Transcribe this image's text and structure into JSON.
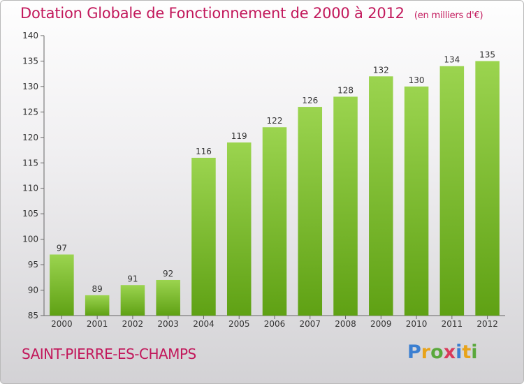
{
  "header": {
    "title": "Dotation Globale de Fonctionnement de 2000 à 2012",
    "subtitle": "(en milliers d'€)"
  },
  "footer": {
    "commune": "SAINT-PIERRE-ES-CHAMPS",
    "logo": "Proxiti"
  },
  "colors": {
    "bar_top": "#9bd44f",
    "bar_bottom": "#5fa114",
    "accent": "#c2185b"
  },
  "chart_data": {
    "type": "bar",
    "title": "Dotation Globale de Fonctionnement de 2000 à 2012",
    "subtitle": "(en milliers d'€)",
    "xlabel": "",
    "ylabel": "",
    "categories": [
      "2000",
      "2001",
      "2002",
      "2003",
      "2004",
      "2005",
      "2006",
      "2007",
      "2008",
      "2009",
      "2010",
      "2011",
      "2012"
    ],
    "values": [
      97,
      89,
      91,
      92,
      116,
      119,
      122,
      126,
      128,
      132,
      130,
      134,
      135
    ],
    "yticks": [
      85,
      90,
      95,
      100,
      105,
      110,
      115,
      120,
      125,
      130,
      135,
      140
    ],
    "ylim": [
      85,
      140
    ],
    "grid": false,
    "legend": "none"
  }
}
